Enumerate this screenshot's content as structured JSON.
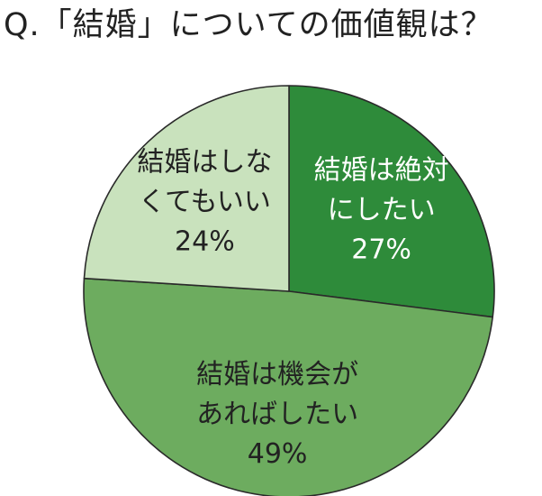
{
  "title": "Q.「結婚」についての価値観は？",
  "chart_data": {
    "type": "pie",
    "title": "Q.「結婚」についての価値観は？",
    "start": "12 o'clock",
    "direction": "clockwise",
    "slices": [
      {
        "label_lines": [
          "結婚は絶対",
          "にしたい"
        ],
        "value": 27,
        "value_label": "27%",
        "color": "#2e8b3a",
        "text_color": "#ffffff"
      },
      {
        "label_lines": [
          "結婚は機会が",
          "あればしたい"
        ],
        "value": 49,
        "value_label": "49%",
        "color": "#6dac5f",
        "text_color": "#222222"
      },
      {
        "label_lines": [
          "結婚はしな",
          "くてもいい"
        ],
        "value": 24,
        "value_label": "24%",
        "color": "#c9e2bd",
        "text_color": "#222222"
      }
    ]
  }
}
